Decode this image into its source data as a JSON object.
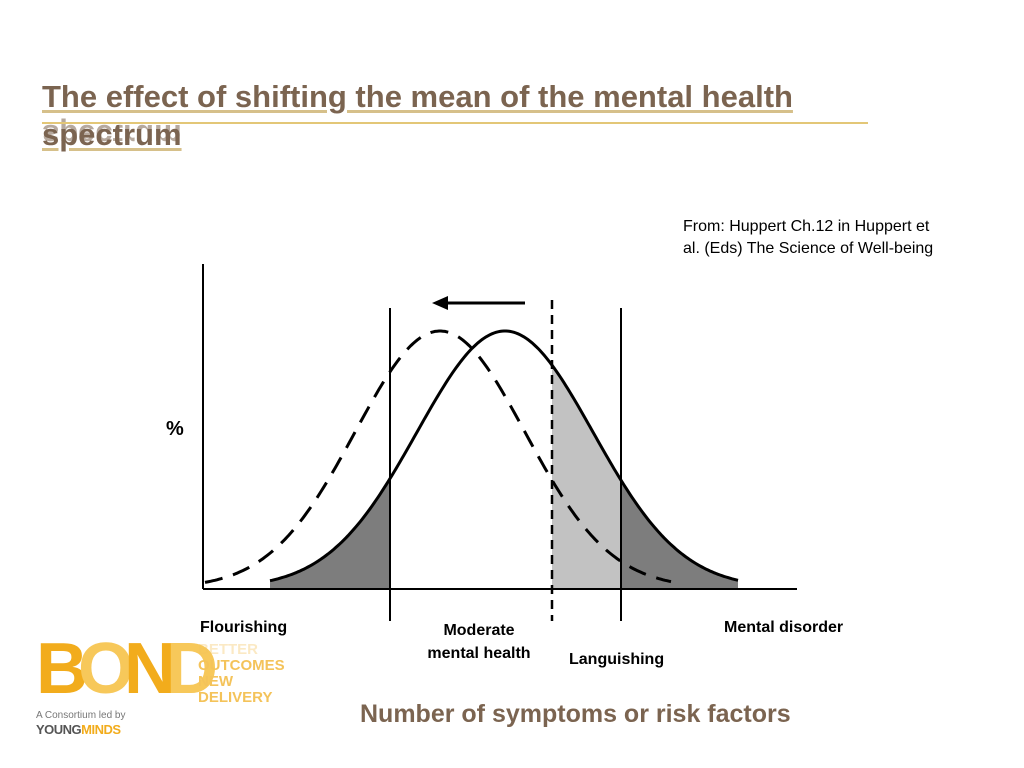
{
  "slide": {
    "title_line1": "The effect of shifting the mean of the mental health",
    "title_line2": "spectrum",
    "source_line1": "From: Huppert Ch.12 in Huppert et",
    "source_line2": "al. (Eds) The Science of Well-being"
  },
  "diagram": {
    "y_axis_label": "%",
    "x_axis_label": "Number of symptoms or risk factors",
    "category_labels": {
      "flourishing": "Flourishing",
      "moderate_line1": "Moderate",
      "moderate_line2": "mental health",
      "languishing": "Languishing",
      "disorder": "Mental disorder"
    },
    "arrow_direction": "left",
    "curves": [
      {
        "style": "solid",
        "role": "current distribution"
      },
      {
        "style": "dashed",
        "role": "shifted distribution"
      }
    ],
    "colors": {
      "dark_shade": "#7d7d7d",
      "light_shade": "#c2c2c2",
      "title": "#7b6450",
      "accent_gold": "#e3c777"
    }
  },
  "logo": {
    "main": "BOND",
    "words": [
      "BETTER",
      "OUTCOMES",
      "NEW",
      "DELIVERY"
    ],
    "consortium_text": "A Consortium led by",
    "young": "YOUNG",
    "minds": "MINDS"
  }
}
